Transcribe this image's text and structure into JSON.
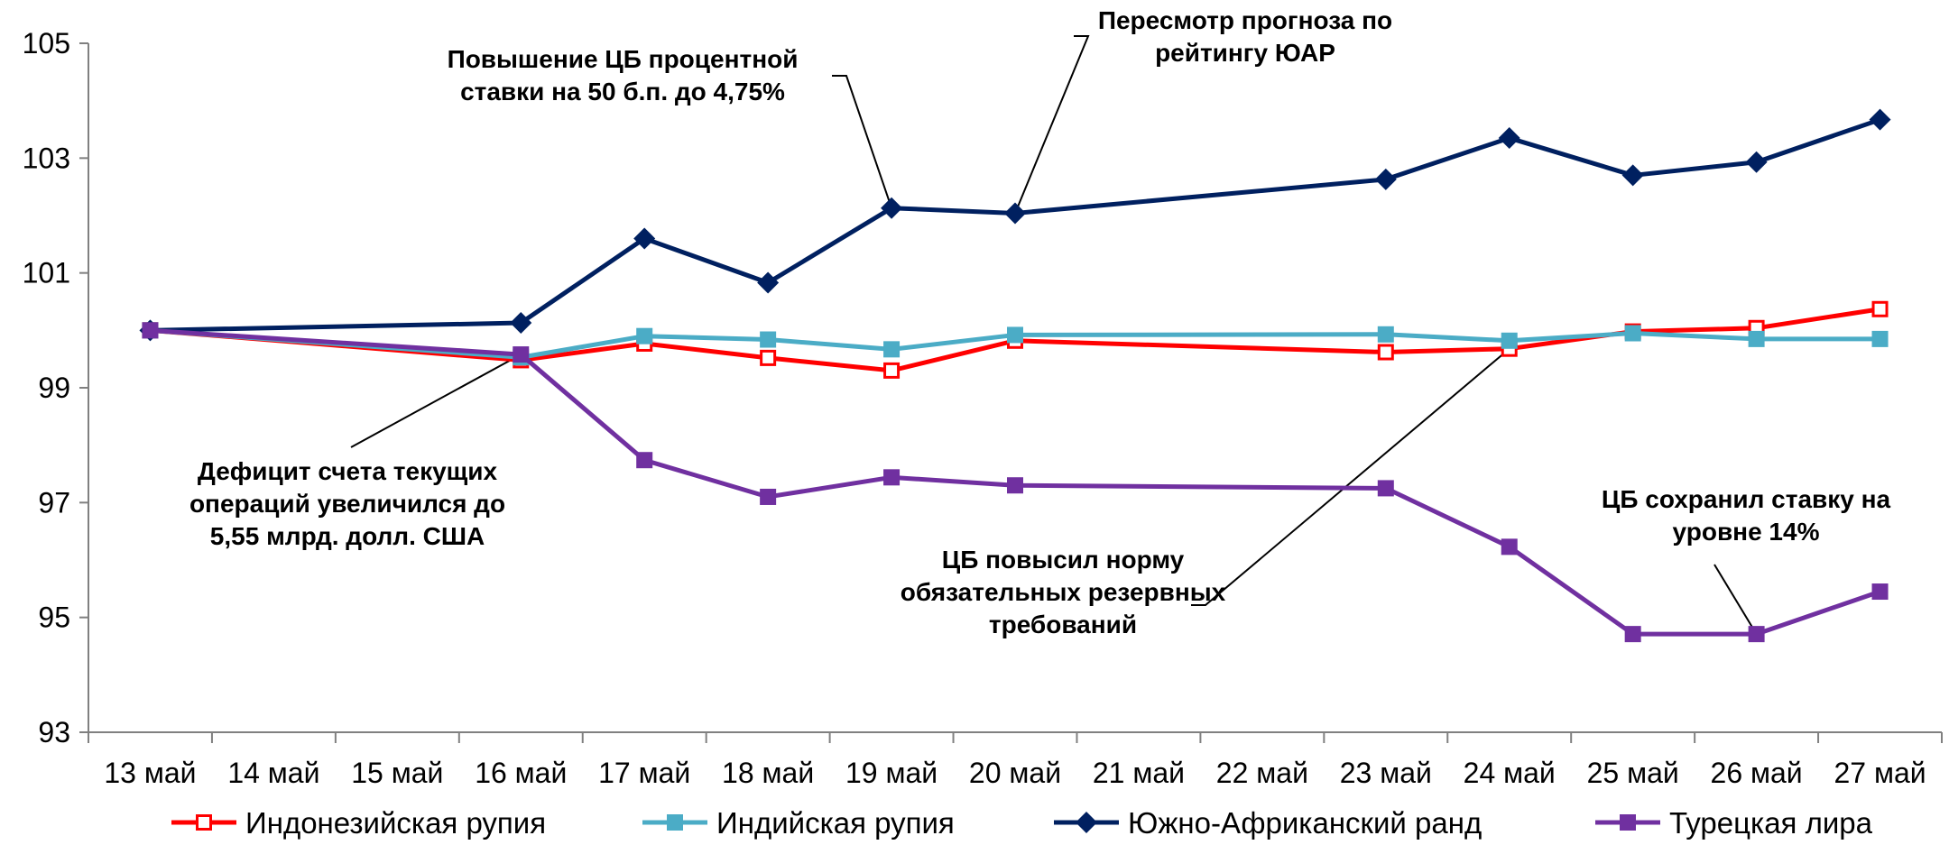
{
  "chart_data": {
    "type": "line",
    "title": "",
    "xlabel": "",
    "ylabel": "",
    "categories": [
      "13 май",
      "14 май",
      "15 май",
      "16 май",
      "17 май",
      "18 май",
      "19 май",
      "20 май",
      "21 май",
      "22 май",
      "23 май",
      "24 май",
      "25 май",
      "26 май",
      "27 май"
    ],
    "ylim": [
      93,
      105
    ],
    "yticks": [
      93,
      95,
      97,
      99,
      101,
      103,
      105
    ],
    "grid": false,
    "legend": "bottom",
    "series": [
      {
        "name": "Индонезийская рупия",
        "color": "#ff0000",
        "marker": "square-open",
        "values": [
          100,
          null,
          null,
          99.48,
          99.77,
          99.52,
          99.3,
          99.82,
          null,
          null,
          99.62,
          99.68,
          99.98,
          100.04,
          100.37
        ]
      },
      {
        "name": "Индийская рупия",
        "color": "#4bacc6",
        "marker": "square",
        "values": [
          100,
          null,
          null,
          99.53,
          99.9,
          99.84,
          99.67,
          99.92,
          null,
          null,
          99.93,
          99.82,
          99.95,
          99.85,
          99.85
        ]
      },
      {
        "name": "Южно-Африканский ранд",
        "color": "#002060",
        "marker": "diamond",
        "values": [
          100,
          null,
          null,
          100.13,
          101.6,
          100.83,
          102.13,
          102.04,
          null,
          null,
          102.63,
          103.35,
          102.7,
          102.93,
          103.67
        ]
      },
      {
        "name": "Турецкая лира",
        "color": "#7030a0",
        "marker": "square",
        "values": [
          100,
          null,
          null,
          99.58,
          97.74,
          97.1,
          97.44,
          97.3,
          null,
          null,
          97.25,
          96.23,
          94.71,
          94.71,
          95.45
        ]
      }
    ],
    "annotations": [
      {
        "lines": [
          "Повышение ЦБ процентной",
          "ставки на  50 б.п. до 4,75%"
        ],
        "target": {
          "category": "19 май",
          "value": 102.13
        }
      },
      {
        "lines": [
          "Пересмотр прогноза по",
          "рейтингу ЮАР"
        ],
        "target": {
          "category": "20 май",
          "value": 102.04
        }
      },
      {
        "lines": [
          "Дефицит счета текущих",
          "операций увеличился до",
          "5,55 млрд. долл. США"
        ],
        "target": {
          "category": "16 май",
          "value": 99.58
        }
      },
      {
        "lines": [
          "ЦБ повысил норму",
          "обязательных резервных",
          "требований"
        ],
        "target": {
          "category": "24 май",
          "value": 99.68
        }
      },
      {
        "lines": [
          "ЦБ сохранил ставку на",
          "уровне 14%"
        ],
        "target": {
          "category": "26 май",
          "value": 94.71
        }
      }
    ]
  }
}
